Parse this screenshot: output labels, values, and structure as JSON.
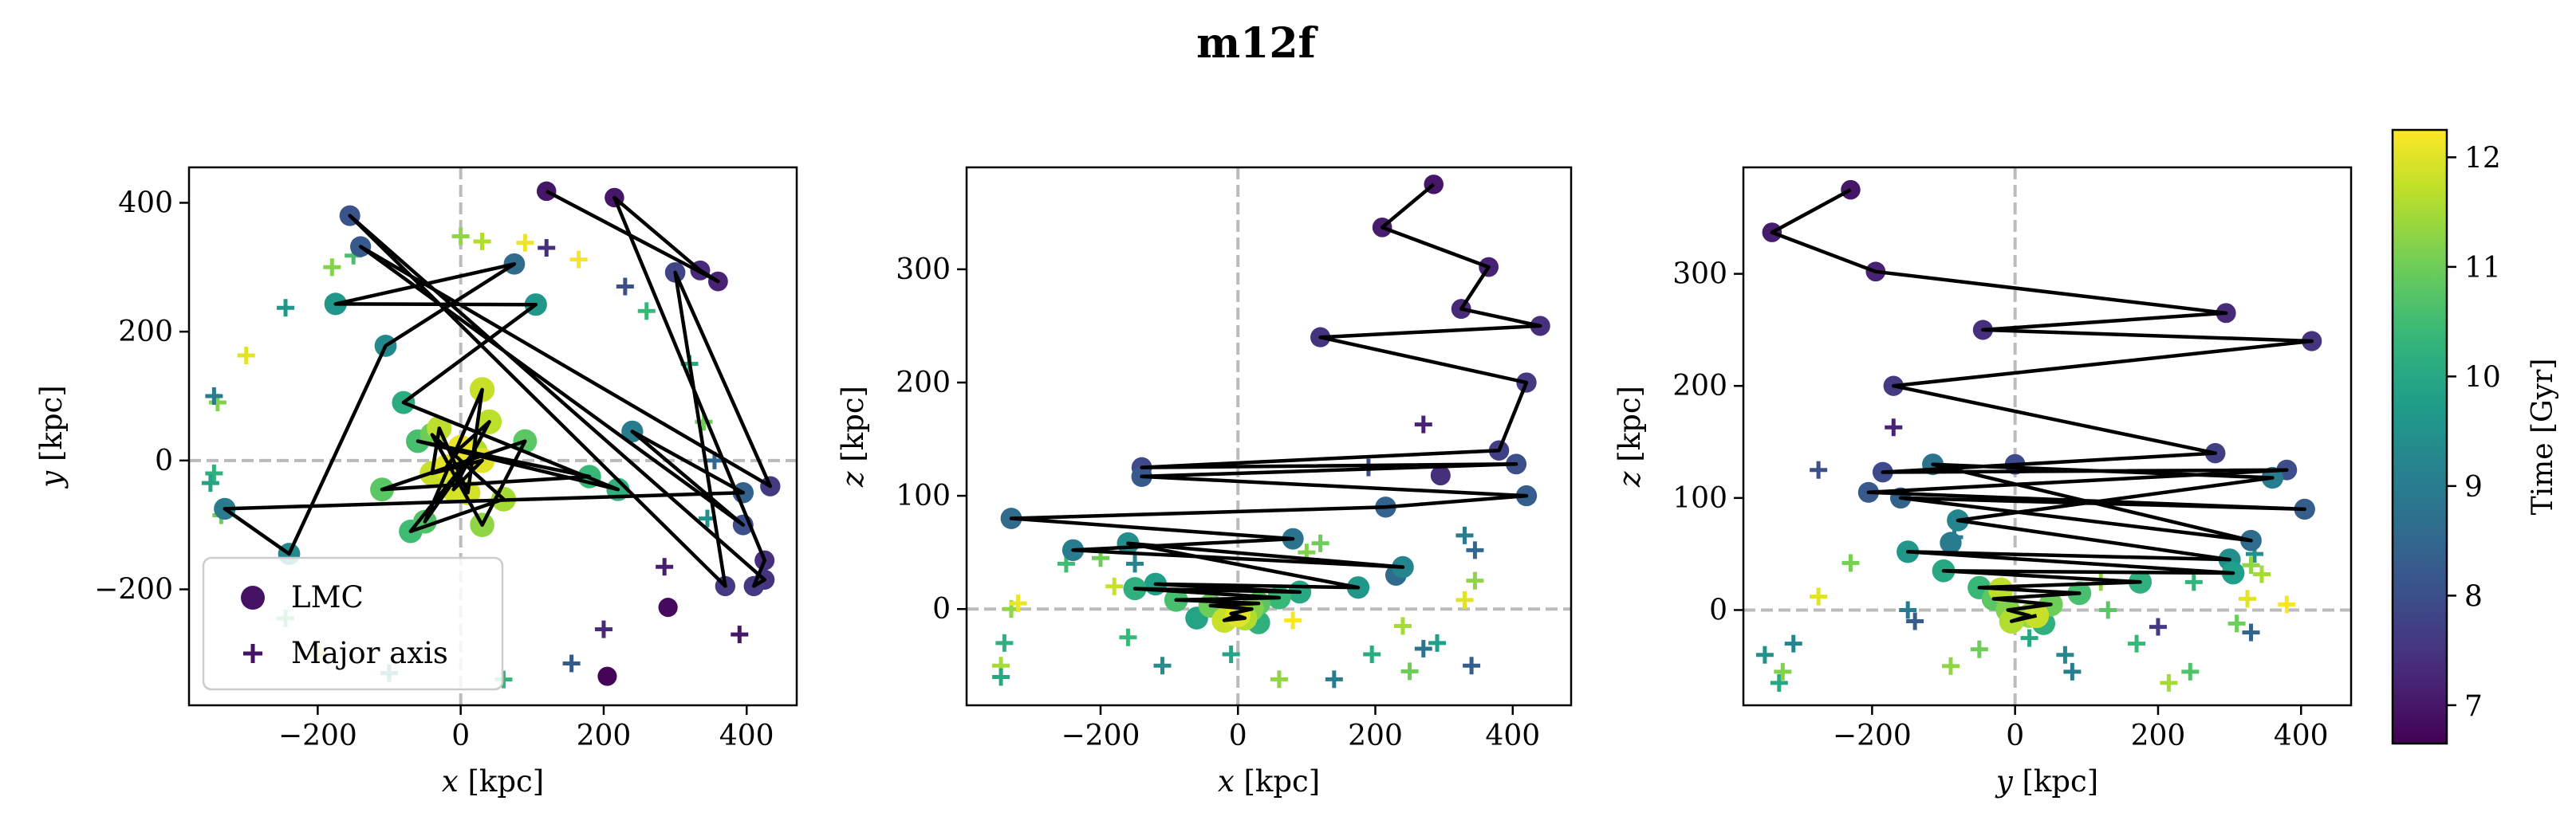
{
  "title": "m12f",
  "colorbar": {
    "label": "Time [Gyr]",
    "range": [
      6.65,
      12.25
    ],
    "ticks": [
      7,
      8,
      9,
      10,
      11,
      12
    ],
    "colormap": "viridis"
  },
  "legend": {
    "placement": "lower-left",
    "entries": [
      "LMC",
      "Major axis"
    ]
  },
  "chart_data": [
    {
      "type": "scatter",
      "subplot": "xy",
      "xlabel": "x [kpc]",
      "ylabel": "y [kpc]",
      "xlim": [
        -380,
        470
      ],
      "ylim": [
        -380,
        455
      ],
      "xticks": [
        -200,
        0,
        200,
        400
      ],
      "yticks": [
        -200,
        0,
        200,
        400
      ],
      "reference_lines": {
        "x": 0,
        "y": 0,
        "style": "dashed",
        "color": "#bbbbbb"
      },
      "lmc_path": [
        [
          120,
          418,
          7.0
        ],
        [
          360,
          278,
          7.2
        ],
        [
          335,
          295,
          7.3
        ],
        [
          215,
          408,
          7.0
        ],
        [
          425,
          -155,
          7.4
        ],
        [
          410,
          -195,
          7.6
        ],
        [
          425,
          -185,
          7.5
        ],
        [
          -155,
          380,
          8.1
        ],
        [
          370,
          -195,
          7.6
        ],
        [
          300,
          292,
          7.8
        ],
        [
          433,
          -40,
          7.6
        ],
        [
          -140,
          332,
          8.2
        ],
        [
          395,
          -100,
          8.0
        ],
        [
          240,
          45,
          9.0
        ],
        [
          395,
          -50,
          8.4
        ],
        [
          -330,
          -75,
          9.0
        ],
        [
          -240,
          -145,
          9.3
        ],
        [
          -105,
          178,
          9.3
        ],
        [
          75,
          305,
          8.6
        ],
        [
          -175,
          243,
          9.6
        ],
        [
          105,
          242,
          9.6
        ],
        [
          -80,
          90,
          10.1
        ],
        [
          220,
          -45,
          10.2
        ],
        [
          -60,
          30,
          10.6
        ],
        [
          180,
          -25,
          10.4
        ],
        [
          -110,
          -45,
          10.8
        ],
        [
          90,
          30,
          10.8
        ],
        [
          30,
          -100,
          11.3
        ],
        [
          -40,
          40,
          11.0
        ],
        [
          60,
          -60,
          11.5
        ],
        [
          -70,
          -110,
          10.5
        ],
        [
          20,
          15,
          11.6
        ],
        [
          -50,
          -95,
          10.7
        ],
        [
          30,
          110,
          11.8
        ],
        [
          10,
          -50,
          11.9
        ],
        [
          -30,
          50,
          11.7
        ],
        [
          -40,
          -20,
          11.8
        ],
        [
          30,
          0,
          12.0
        ],
        [
          -10,
          -45,
          11.9
        ],
        [
          40,
          60,
          11.7
        ],
        [
          0,
          20,
          12.1
        ],
        [
          -20,
          -10,
          12.0
        ]
      ],
      "lmc_extra": [
        [
          290,
          -228,
          6.8
        ],
        [
          205,
          -335,
          6.7
        ]
      ],
      "major_axis": [
        [
          -340,
          90,
          11.2
        ],
        [
          -345,
          100,
          9.0
        ],
        [
          -300,
          163,
          12.0
        ],
        [
          -245,
          237,
          9.6
        ],
        [
          -180,
          300,
          11.2
        ],
        [
          -150,
          318,
          10.6
        ],
        [
          0,
          348,
          11.3
        ],
        [
          30,
          340,
          11.6
        ],
        [
          90,
          338,
          12.1
        ],
        [
          120,
          330,
          7.4
        ],
        [
          165,
          312,
          12.2
        ],
        [
          230,
          270,
          8.0
        ],
        [
          260,
          232,
          10.4
        ],
        [
          320,
          150,
          10.0
        ],
        [
          340,
          60,
          11.0
        ],
        [
          355,
          0,
          8.5
        ],
        [
          345,
          -90,
          9.5
        ],
        [
          285,
          -165,
          7.1
        ],
        [
          200,
          -262,
          7.3
        ],
        [
          155,
          -315,
          8.2
        ],
        [
          -245,
          -245,
          10.6
        ],
        [
          -200,
          -300,
          12.0
        ],
        [
          -100,
          -330,
          9.5
        ],
        [
          60,
          -340,
          10.3
        ],
        [
          -345,
          -20,
          10.2
        ],
        [
          -350,
          -35,
          9.9
        ],
        [
          -335,
          -85,
          11.0
        ],
        [
          390,
          -270,
          7.0
        ]
      ]
    },
    {
      "type": "scatter",
      "subplot": "xz",
      "xlabel": "x [kpc]",
      "ylabel": "z [kpc]",
      "xlim": [
        -395,
        485
      ],
      "ylim": [
        -85,
        390
      ],
      "xticks": [
        -200,
        0,
        200,
        400
      ],
      "yticks": [
        0,
        100,
        200,
        300
      ],
      "reference_lines": {
        "x": 0,
        "y": 0,
        "style": "dashed",
        "color": "#bbbbbb"
      },
      "lmc_path": [
        [
          285,
          375,
          7.0
        ],
        [
          210,
          337,
          7.1
        ],
        [
          365,
          302,
          7.2
        ],
        [
          325,
          265,
          7.3
        ],
        [
          440,
          250,
          7.4
        ],
        [
          120,
          240,
          7.5
        ],
        [
          420,
          200,
          7.6
        ],
        [
          380,
          140,
          7.7
        ],
        [
          -140,
          125,
          7.9
        ],
        [
          405,
          128,
          8.0
        ],
        [
          -140,
          117,
          8.2
        ],
        [
          420,
          100,
          8.3
        ],
        [
          215,
          90,
          8.4
        ],
        [
          -330,
          80,
          8.6
        ],
        [
          80,
          62,
          8.8
        ],
        [
          -240,
          52,
          9.0
        ],
        [
          240,
          37,
          9.2
        ],
        [
          -160,
          58,
          9.4
        ],
        [
          175,
          19,
          9.6
        ],
        [
          -120,
          22,
          9.8
        ],
        [
          90,
          15,
          10.0
        ],
        [
          -150,
          18,
          10.2
        ],
        [
          60,
          10,
          10.4
        ],
        [
          -90,
          8,
          10.6
        ],
        [
          30,
          5,
          10.8
        ],
        [
          -40,
          3,
          11.0
        ],
        [
          20,
          0,
          11.2
        ],
        [
          -10,
          -4,
          11.4
        ],
        [
          10,
          -8,
          11.6
        ],
        [
          -20,
          -10,
          11.8
        ],
        [
          0,
          -5,
          12.0
        ]
      ],
      "lmc_extra": [
        [
          295,
          118,
          7.4
        ],
        [
          230,
          30,
          8.6
        ],
        [
          30,
          -12,
          10.2
        ],
        [
          -60,
          -8,
          9.9
        ]
      ],
      "major_axis": [
        [
          270,
          163,
          7.2
        ],
        [
          190,
          125,
          8.0
        ],
        [
          330,
          65,
          9.0
        ],
        [
          345,
          52,
          8.5
        ],
        [
          345,
          25,
          11.3
        ],
        [
          330,
          8,
          12.0
        ],
        [
          290,
          -30,
          9.8
        ],
        [
          340,
          -50,
          8.3
        ],
        [
          270,
          -35,
          8.8
        ],
        [
          250,
          -55,
          11.0
        ],
        [
          195,
          -40,
          10.1
        ],
        [
          140,
          -62,
          9.0
        ],
        [
          60,
          -62,
          11.3
        ],
        [
          -10,
          -40,
          9.9
        ],
        [
          -110,
          -50,
          9.4
        ],
        [
          -160,
          -25,
          10.4
        ],
        [
          -340,
          -30,
          10.2
        ],
        [
          -345,
          -50,
          11.5
        ],
        [
          -345,
          -60,
          10.0
        ],
        [
          -330,
          0,
          11.3
        ],
        [
          -320,
          5,
          12.1
        ],
        [
          -250,
          40,
          10.5
        ],
        [
          -180,
          20,
          11.8
        ],
        [
          -200,
          45,
          11.0
        ],
        [
          -150,
          40,
          9.2
        ],
        [
          100,
          50,
          11.2
        ],
        [
          120,
          58,
          11.0
        ],
        [
          80,
          -10,
          12.2
        ],
        [
          240,
          -15,
          11.5
        ]
      ]
    },
    {
      "type": "scatter",
      "subplot": "yz",
      "xlabel": "y [kpc]",
      "ylabel": "z [kpc]",
      "xlim": [
        -380,
        470
      ],
      "ylim": [
        -85,
        395
      ],
      "xticks": [
        -200,
        0,
        200,
        400
      ],
      "yticks": [
        0,
        100,
        200,
        300
      ],
      "reference_lines": {
        "x": 0,
        "y": 0,
        "style": "dashed",
        "color": "#bbbbbb"
      },
      "lmc_path": [
        [
          -230,
          375,
          7.0
        ],
        [
          -340,
          337,
          7.1
        ],
        [
          -195,
          302,
          7.2
        ],
        [
          295,
          265,
          7.3
        ],
        [
          -45,
          250,
          7.4
        ],
        [
          415,
          240,
          7.5
        ],
        [
          -170,
          200,
          7.6
        ],
        [
          280,
          140,
          7.7
        ],
        [
          -185,
          123,
          7.9
        ],
        [
          380,
          125,
          8.0
        ],
        [
          -205,
          105,
          8.2
        ],
        [
          405,
          90,
          8.3
        ],
        [
          -160,
          100,
          8.4
        ],
        [
          330,
          62,
          8.6
        ],
        [
          -115,
          130,
          8.8
        ],
        [
          360,
          118,
          9.0
        ],
        [
          -80,
          80,
          9.2
        ],
        [
          300,
          45,
          9.4
        ],
        [
          -150,
          52,
          9.6
        ],
        [
          305,
          33,
          9.8
        ],
        [
          -100,
          35,
          10.0
        ],
        [
          175,
          25,
          10.2
        ],
        [
          -50,
          20,
          10.4
        ],
        [
          90,
          15,
          10.6
        ],
        [
          -30,
          10,
          10.8
        ],
        [
          50,
          5,
          11.0
        ],
        [
          -10,
          0,
          11.2
        ],
        [
          20,
          -5,
          11.4
        ],
        [
          -5,
          -10,
          11.6
        ],
        [
          30,
          -5,
          11.8
        ]
      ],
      "lmc_extra": [
        [
          0,
          130,
          7.9
        ],
        [
          -90,
          60,
          9.0
        ],
        [
          40,
          -12,
          10.2
        ],
        [
          -20,
          18,
          11.7
        ]
      ],
      "major_axis": [
        [
          -170,
          163,
          7.2
        ],
        [
          -275,
          125,
          8.0
        ],
        [
          -85,
          65,
          9.0
        ],
        [
          335,
          50,
          9.5
        ],
        [
          330,
          40,
          11.3
        ],
        [
          345,
          32,
          11.5
        ],
        [
          250,
          25,
          10.3
        ],
        [
          325,
          10,
          12.0
        ],
        [
          380,
          5,
          12.2
        ],
        [
          330,
          -20,
          8.4
        ],
        [
          310,
          -12,
          11.0
        ],
        [
          200,
          -15,
          7.6
        ],
        [
          170,
          -30,
          10.4
        ],
        [
          130,
          0,
          10.8
        ],
        [
          120,
          25,
          11.3
        ],
        [
          70,
          -40,
          9.3
        ],
        [
          80,
          -55,
          9.0
        ],
        [
          20,
          -25,
          10.0
        ],
        [
          -50,
          -35,
          11.0
        ],
        [
          -90,
          -50,
          11.3
        ],
        [
          -140,
          -10,
          8.3
        ],
        [
          -150,
          0,
          9.0
        ],
        [
          -310,
          -30,
          9.2
        ],
        [
          -330,
          -65,
          10.0
        ],
        [
          -350,
          -40,
          9.5
        ],
        [
          -325,
          -55,
          11.2
        ],
        [
          -275,
          12,
          12.0
        ],
        [
          -230,
          42,
          11.1
        ],
        [
          215,
          -65,
          11.5
        ],
        [
          245,
          -55,
          10.7
        ]
      ]
    }
  ]
}
